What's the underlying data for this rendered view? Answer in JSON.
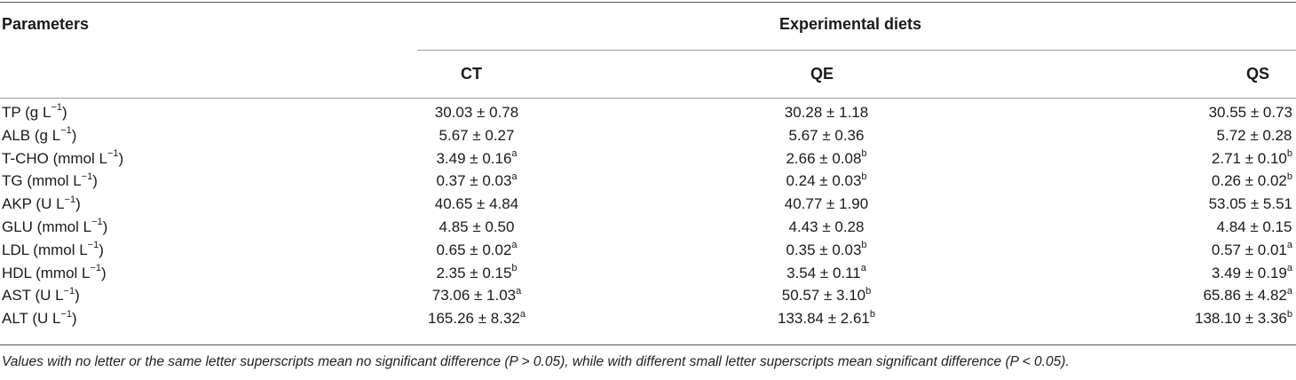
{
  "header": {
    "parameters_label": "Parameters",
    "group_label": "Experimental diets",
    "columns": [
      "CT",
      "QE",
      "QS"
    ]
  },
  "rows": [
    {
      "param": "TP (g L",
      "unit_exp": "−1",
      "param_end": ")",
      "values": [
        {
          "v": "30.03 ± 0.78",
          "s": ""
        },
        {
          "v": "30.28 ± 1.18",
          "s": ""
        },
        {
          "v": "30.55 ± 0.73",
          "s": ""
        }
      ]
    },
    {
      "param": "ALB (g L",
      "unit_exp": "−1",
      "param_end": ")",
      "values": [
        {
          "v": "5.67 ± 0.27",
          "s": ""
        },
        {
          "v": "5.67 ± 0.36",
          "s": ""
        },
        {
          "v": "5.72 ± 0.28",
          "s": ""
        }
      ]
    },
    {
      "param": "T-CHO (mmol L",
      "unit_exp": "−1",
      "param_end": ")",
      "values": [
        {
          "v": "3.49 ± 0.16",
          "s": "a"
        },
        {
          "v": "2.66 ± 0.08",
          "s": "b"
        },
        {
          "v": "2.71 ± 0.10",
          "s": "b"
        }
      ]
    },
    {
      "param": "TG (mmol L",
      "unit_exp": "−1",
      "param_end": ")",
      "values": [
        {
          "v": "0.37 ± 0.03",
          "s": "a"
        },
        {
          "v": "0.24 ± 0.03",
          "s": "b"
        },
        {
          "v": "0.26 ± 0.02",
          "s": "b"
        }
      ]
    },
    {
      "param": "AKP (U L",
      "unit_exp": "−1",
      "param_end": ")",
      "values": [
        {
          "v": "40.65 ± 4.84",
          "s": ""
        },
        {
          "v": "40.77 ± 1.90",
          "s": ""
        },
        {
          "v": "53.05 ± 5.51",
          "s": ""
        }
      ]
    },
    {
      "param": "GLU (mmol L",
      "unit_exp": "−1",
      "param_end": ")",
      "values": [
        {
          "v": "4.85 ± 0.50",
          "s": ""
        },
        {
          "v": "4.43 ± 0.28",
          "s": ""
        },
        {
          "v": "4.84 ± 0.15",
          "s": ""
        }
      ]
    },
    {
      "param": "LDL (mmol L",
      "unit_exp": "−1",
      "param_end": ")",
      "values": [
        {
          "v": "0.65 ± 0.02",
          "s": "a"
        },
        {
          "v": "0.35 ± 0.03",
          "s": "b"
        },
        {
          "v": "0.57 ± 0.01",
          "s": "a"
        }
      ]
    },
    {
      "param": "HDL (mmol L",
      "unit_exp": "−1",
      "param_end": ")",
      "values": [
        {
          "v": "2.35 ± 0.15",
          "s": "b"
        },
        {
          "v": "3.54 ± 0.11",
          "s": "a"
        },
        {
          "v": "3.49 ± 0.19",
          "s": "a"
        }
      ]
    },
    {
      "param": "AST (U L",
      "unit_exp": "−1",
      "param_end": ")",
      "values": [
        {
          "v": "73.06 ± 1.03",
          "s": "a"
        },
        {
          "v": "50.57 ± 3.10",
          "s": "b"
        },
        {
          "v": "65.86 ± 4.82",
          "s": "a"
        }
      ]
    },
    {
      "param": "ALT (U L",
      "unit_exp": "−1",
      "param_end": ")",
      "values": [
        {
          "v": "165.26 ± 8.32",
          "s": "a"
        },
        {
          "v": "133.84 ± 2.61",
          "s": "b"
        },
        {
          "v": "138.10 ± 3.36",
          "s": "b"
        }
      ]
    }
  ],
  "footnote": "Values with no letter or the same letter superscripts mean no significant difference (P > 0.05), while with different small letter superscripts mean significant difference (P < 0.05)."
}
